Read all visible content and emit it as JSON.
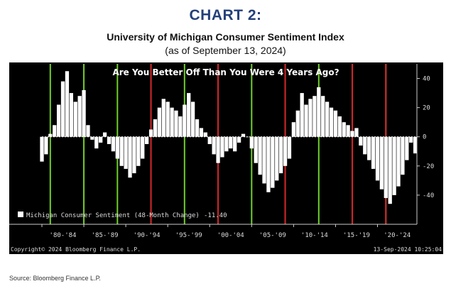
{
  "page": {
    "chart_number": "CHART 2:",
    "title": "University of Michigan Consumer Sentiment Index",
    "subtitle": "(as of September 13, 2024)",
    "source": "Source: Bloomberg Finance L.P."
  },
  "chart_data": {
    "type": "bar",
    "title": "Are You Better Off Than You Were 4 Years Ago?",
    "xlabel": "",
    "ylabel": "",
    "ylim": [
      -60,
      50
    ],
    "grid": false,
    "legend_position": "bottom-left",
    "y_ticks": [
      40,
      20,
      0,
      -20,
      -40
    ],
    "x_tick_labels": [
      "'80-'84",
      "'85-'89",
      "'90-'94",
      "'95-'99",
      "'00-'04",
      "'05-'09",
      "'10-'14",
      "'15-'19",
      "'20-'24"
    ],
    "x_range": [
      1980.0,
      2024.7
    ],
    "footer_left": "Copyright© 2024 Bloomberg Finance L.P.",
    "footer_right": "13-Sep-2024 10:25:04",
    "series": [
      {
        "name": "Michigan Consumer Sentiment (48-Month Change)",
        "last_value_label": "-11.40",
        "color": "#ffffff",
        "x": [
          1980.0,
          1980.5,
          1981.0,
          1981.5,
          1982.0,
          1982.5,
          1983.0,
          1983.5,
          1984.0,
          1984.5,
          1985.0,
          1985.5,
          1986.0,
          1986.5,
          1987.0,
          1987.5,
          1988.0,
          1988.5,
          1989.0,
          1989.5,
          1990.0,
          1990.5,
          1991.0,
          1991.5,
          1992.0,
          1992.5,
          1993.0,
          1993.5,
          1994.0,
          1994.5,
          1995.0,
          1995.5,
          1996.0,
          1996.5,
          1997.0,
          1997.5,
          1998.0,
          1998.5,
          1999.0,
          1999.5,
          2000.0,
          2000.5,
          2001.0,
          2001.5,
          2002.0,
          2002.5,
          2003.0,
          2003.5,
          2004.0,
          2004.5,
          2005.0,
          2005.5,
          2006.0,
          2006.5,
          2007.0,
          2007.5,
          2008.0,
          2008.5,
          2009.0,
          2009.5,
          2010.0,
          2010.5,
          2011.0,
          2011.5,
          2012.0,
          2012.5,
          2013.0,
          2013.5,
          2014.0,
          2014.5,
          2015.0,
          2015.5,
          2016.0,
          2016.5,
          2017.0,
          2017.5,
          2018.0,
          2018.5,
          2019.0,
          2019.5,
          2020.0,
          2020.5,
          2021.0,
          2021.5,
          2022.0,
          2022.5,
          2023.0,
          2023.5,
          2024.0,
          2024.5
        ],
        "values": [
          -17,
          -12,
          2,
          8,
          22,
          38,
          45,
          30,
          24,
          28,
          32,
          8,
          -2,
          -8,
          -4,
          3,
          -5,
          -10,
          -15,
          -20,
          -22,
          -28,
          -25,
          -20,
          -15,
          -5,
          5,
          12,
          20,
          26,
          24,
          20,
          18,
          14,
          22,
          30,
          24,
          12,
          6,
          3,
          -5,
          -12,
          -18,
          -14,
          -10,
          -8,
          -10,
          -4,
          2,
          0,
          -8,
          -18,
          -26,
          -32,
          -38,
          -35,
          -30,
          -25,
          -20,
          -15,
          10,
          18,
          30,
          22,
          26,
          28,
          34,
          28,
          24,
          20,
          18,
          14,
          10,
          8,
          4,
          6,
          -6,
          -12,
          -16,
          -22,
          -30,
          -36,
          -42,
          -46,
          -40,
          -34,
          -26,
          -16,
          -4,
          -11.4
        ]
      }
    ],
    "vertical_markers": {
      "green": [
        1981.0,
        1985.0,
        1989.0,
        1993.0,
        1997.0,
        2001.0,
        2005.0,
        2009.0,
        2013.0,
        2017.0,
        2021.0
      ],
      "red": [
        1993.0,
        2001.0,
        2009.0,
        2017.0,
        2021.0
      ]
    }
  }
}
